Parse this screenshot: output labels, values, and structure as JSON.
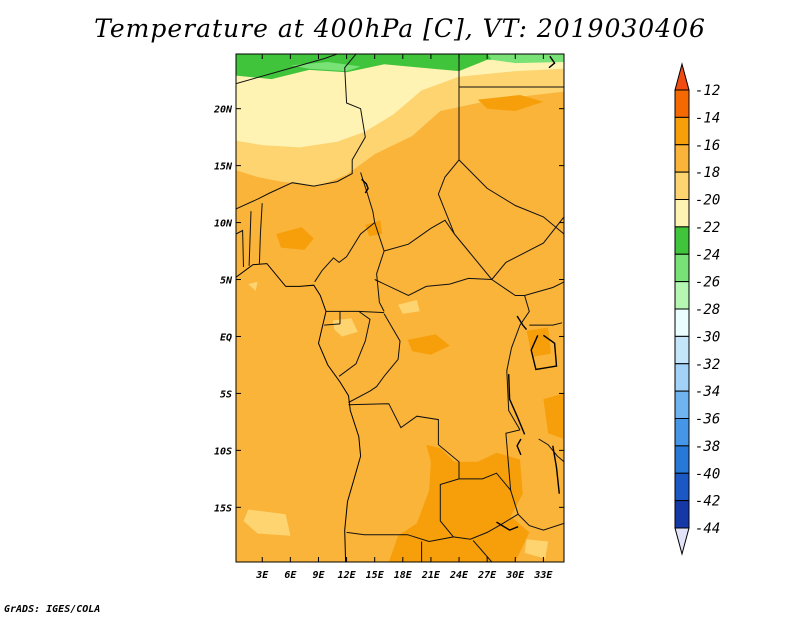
{
  "header": {
    "title": "Temperature at 400hPa [C], VT: 2019030406"
  },
  "footer": {
    "credit": "GrADS: IGES/COLA"
  },
  "colors": {
    "frame": "#000000",
    "borders": "#111111"
  },
  "chart_data": {
    "type": "heatmap",
    "title": "Temperature at 400hPa [C], VT: 2019030406",
    "variable": "Temperature",
    "units": "C",
    "x_axis": {
      "ticks": [
        3,
        6,
        9,
        12,
        15,
        18,
        21,
        24,
        27,
        30,
        33
      ],
      "tick_labels": [
        "3E",
        "6E",
        "9E",
        "12E",
        "15E",
        "18E",
        "21E",
        "24E",
        "27E",
        "30E",
        "33E"
      ],
      "range": [
        0.2,
        35.2
      ]
    },
    "y_axis": {
      "ticks": [
        20,
        15,
        10,
        5,
        0,
        -5,
        -10,
        -15
      ],
      "tick_labels": [
        "20N",
        "15N",
        "10N",
        "5N",
        "EQ",
        "5S",
        "10S",
        "15S"
      ],
      "range": [
        -19.8,
        24.8
      ]
    },
    "colorbar": {
      "levels": [
        -12,
        -14,
        -16,
        -18,
        -20,
        -22,
        -24,
        -26,
        -28,
        -30,
        -32,
        -34,
        -36,
        -38,
        -40,
        -42,
        -44
      ],
      "level_labels": [
        "-12",
        "-14",
        "-16",
        "-18",
        "-20",
        "-22",
        "-24",
        "-26",
        "-28",
        "-30",
        "-32",
        "-34",
        "-36",
        "-38",
        "-40",
        "-42",
        "-44"
      ],
      "top_arrow_color": "#f04b10",
      "bottom_arrow_color": "#e2e2f8",
      "bins": [
        {
          "color": "#f56a00"
        },
        {
          "color": "#f79f0a"
        },
        {
          "color": "#fab43a"
        },
        {
          "color": "#fdd470"
        },
        {
          "color": "#fff3b3"
        },
        {
          "color": "#40c43c"
        },
        {
          "color": "#78e276"
        },
        {
          "color": "#b4f6b2"
        },
        {
          "color": "#eafeff"
        },
        {
          "color": "#c3e6fb"
        },
        {
          "color": "#a2d2f7"
        },
        {
          "color": "#6fb4f1"
        },
        {
          "color": "#4696e8"
        },
        {
          "color": "#2878d8"
        },
        {
          "color": "#1c58c4"
        },
        {
          "color": "#1438a6"
        },
        {
          "color": "#0c1a72"
        }
      ]
    },
    "field_regions": [
      {
        "value": -17,
        "color": "#fab43a"
      },
      {
        "value": -19,
        "color": "#fdd470"
      },
      {
        "value": -21,
        "color": "#fff3b3"
      },
      {
        "value": -23,
        "color": "#40c43c"
      },
      {
        "value": -25,
        "color": "#78e276"
      },
      {
        "value": -15,
        "color": "#f79f0a"
      }
    ]
  }
}
